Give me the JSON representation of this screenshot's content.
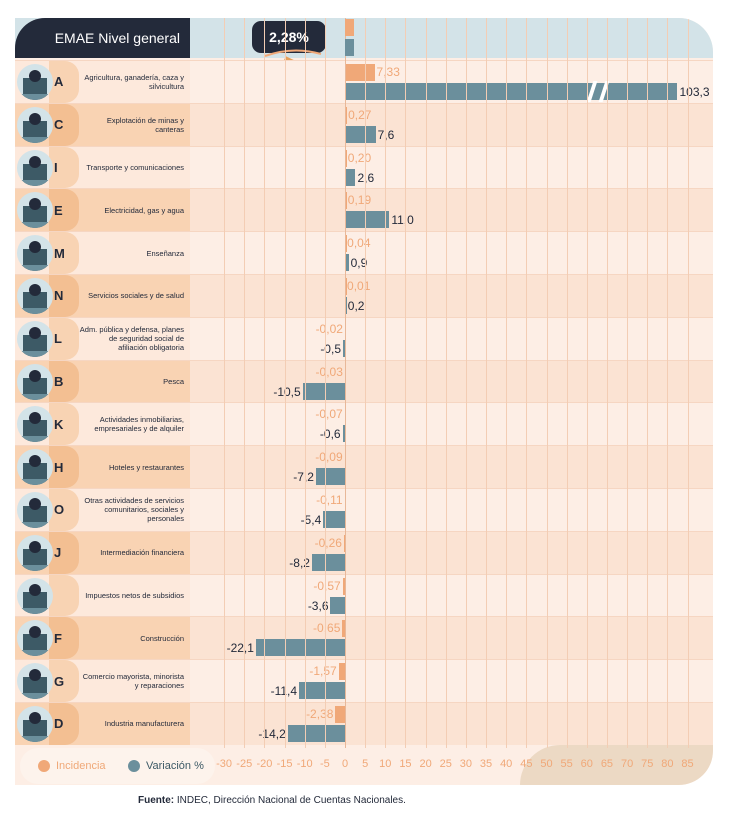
{
  "header": {
    "title": "EMAE Nivel general",
    "badge": "2,28%",
    "incidencia": 2.28,
    "variacion": 2.28
  },
  "colors": {
    "incidencia": "#f0a878",
    "variacion": "#6b8f9c",
    "dark": "#232a3a",
    "header_bg": "#d3e3e8"
  },
  "chart_data": {
    "type": "bar",
    "orientation": "horizontal",
    "xlim": [
      -30,
      85
    ],
    "x_ticks": [
      -30,
      -25,
      -20,
      -15,
      -10,
      -5,
      0,
      5,
      10,
      15,
      20,
      25,
      30,
      35,
      40,
      45,
      50,
      55,
      60,
      65,
      70,
      75,
      80,
      85
    ],
    "axis_break": "A variation bar truncated (103,3)",
    "legend": [
      "Incidencia",
      "Variación %"
    ],
    "categories": [
      {
        "letter": "A",
        "name": "Agricultura, ganadería, caza y silvicultura",
        "icon": "tractor-icon",
        "incidencia": 7.33,
        "variacion": 103.3,
        "inc_label": "7,33",
        "var_label": "103,3"
      },
      {
        "letter": "C",
        "name": "Explotación de minas y canteras",
        "icon": "oil-pump-icon",
        "incidencia": 0.27,
        "variacion": 7.6,
        "inc_label": "0,27",
        "var_label": "7,6"
      },
      {
        "letter": "I",
        "name": "Transporte y comunicaciones",
        "icon": "transport-icon",
        "incidencia": 0.2,
        "variacion": 2.6,
        "inc_label": "0,20",
        "var_label": "2,6"
      },
      {
        "letter": "E",
        "name": "Electricidad, gas y agua",
        "icon": "utilities-icon",
        "incidencia": 0.19,
        "variacion": 11.0,
        "inc_label": "0,19",
        "var_label": "11,0"
      },
      {
        "letter": "M",
        "name": "Enseñanza",
        "icon": "school-icon",
        "incidencia": 0.04,
        "variacion": 0.9,
        "inc_label": "0,04",
        "var_label": "0,9"
      },
      {
        "letter": "N",
        "name": "Servicios sociales y de salud",
        "icon": "health-icon",
        "incidencia": 0.01,
        "variacion": 0.2,
        "inc_label": "0,01",
        "var_label": "0,2"
      },
      {
        "letter": "L",
        "name": "Adm. pública y defensa, planes de seguridad social de afiliación obligatoria",
        "icon": "government-icon",
        "incidencia": -0.02,
        "variacion": -0.5,
        "inc_label": "-0,02",
        "var_label": "-0,5"
      },
      {
        "letter": "B",
        "name": "Pesca",
        "icon": "fish-icon",
        "incidencia": -0.03,
        "variacion": -10.5,
        "inc_label": "-0,03",
        "var_label": "-10,5"
      },
      {
        "letter": "K",
        "name": "Actividades inmobiliarias, empresariales y de alquiler",
        "icon": "real-estate-icon",
        "incidencia": -0.07,
        "variacion": -0.6,
        "inc_label": "-0,07",
        "var_label": "-0,6"
      },
      {
        "letter": "H",
        "name": "Hoteles y restaurantes",
        "icon": "hotel-icon",
        "incidencia": -0.09,
        "variacion": -7.2,
        "inc_label": "-0,09",
        "var_label": "-7,2"
      },
      {
        "letter": "O",
        "name": "Otras actividades de servicios comunitarios, sociales y personales",
        "icon": "community-icon",
        "incidencia": -0.11,
        "variacion": -5.4,
        "inc_label": "-0,11",
        "var_label": "-5,4"
      },
      {
        "letter": "J",
        "name": "Intermediación financiera",
        "icon": "bank-icon",
        "incidencia": -0.26,
        "variacion": -8.2,
        "inc_label": "-0,26",
        "var_label": "-8,2"
      },
      {
        "letter": "",
        "name": "Impuestos netos de subsidios",
        "icon": "taxes-icon",
        "incidencia": -0.57,
        "variacion": -3.6,
        "inc_label": "-0,57",
        "var_label": "-3,6"
      },
      {
        "letter": "F",
        "name": "Construcción",
        "icon": "construction-icon",
        "incidencia": -0.65,
        "variacion": -22.1,
        "inc_label": "-0,65",
        "var_label": "-22,1"
      },
      {
        "letter": "G",
        "name": "Comercio mayorista, minorista y reparaciones",
        "icon": "commerce-icon",
        "incidencia": -1.57,
        "variacion": -11.4,
        "inc_label": "-1,57",
        "var_label": "-11,4"
      },
      {
        "letter": "D",
        "name": "Industria manufacturera",
        "icon": "gears-icon",
        "incidencia": -2.38,
        "variacion": -14.2,
        "inc_label": "-2,38",
        "var_label": "-14,2"
      }
    ]
  },
  "legend": {
    "incidencia": "Incidencia",
    "variacion": "Variación %"
  },
  "source": {
    "label": "Fuente:",
    "text": " INDEC, Dirección Nacional de Cuentas Nacionales."
  }
}
